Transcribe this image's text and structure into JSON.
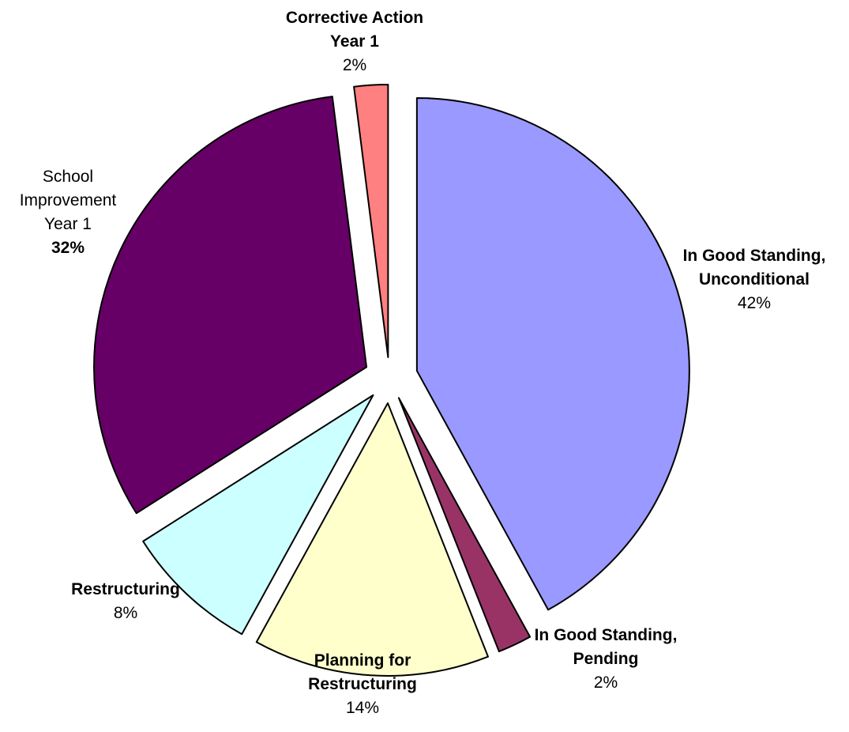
{
  "chart_data": {
    "type": "pie",
    "exploded": true,
    "title": "",
    "start_angle_degrees": 0,
    "direction": "clockwise",
    "slices": [
      {
        "name_lines": [
          "In Good Standing,",
          "Unconditional"
        ],
        "value": 42,
        "value_label": "42%",
        "color": "#9999ff",
        "name_bold": true,
        "value_bold": false
      },
      {
        "name_lines": [
          "In Good Standing,",
          "Pending"
        ],
        "value": 2,
        "value_label": "2%",
        "color": "#993366",
        "name_bold": true,
        "value_bold": false
      },
      {
        "name_lines": [
          "Planning for",
          "Restructuring"
        ],
        "value": 14,
        "value_label": "14%",
        "color": "#ffffcc",
        "name_bold": true,
        "value_bold": false
      },
      {
        "name_lines": [
          "Restructuring"
        ],
        "value": 8,
        "value_label": "8%",
        "color": "#ccffff",
        "name_bold": true,
        "value_bold": false
      },
      {
        "name_lines": [
          "School",
          "Improvement",
          "Year 1"
        ],
        "value": 32,
        "value_label": "32%",
        "color": "#660066",
        "name_bold": false,
        "value_bold": true
      },
      {
        "name_lines": [
          "Corrective Action",
          "Year 1"
        ],
        "value": 2,
        "value_label": "2%",
        "color": "#ff8080",
        "name_bold": true,
        "value_bold": false
      }
    ]
  }
}
